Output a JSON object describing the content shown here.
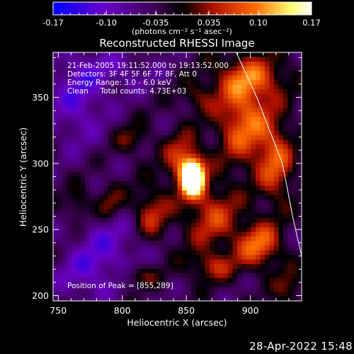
{
  "chart_data": {
    "type": "heatmap",
    "title": "Reconstructed RHESSI Image",
    "xlabel": "Heliocentric X (arcsec)",
    "ylabel": "Heliocentric Y (arcsec)",
    "xlim": [
      746,
      940
    ],
    "ylim": [
      196,
      384
    ],
    "x_ticks": [
      750,
      800,
      850,
      900
    ],
    "y_ticks": [
      200,
      250,
      300,
      350
    ],
    "colorbar": {
      "ticks": [
        "-0.17",
        "-0.10",
        "-0.035",
        "0.035",
        "0.10",
        "0.17"
      ],
      "range": [
        -0.17,
        0.17
      ],
      "unit_label": "(photons cm⁻² s⁻¹ asec⁻²)",
      "colors": [
        "#0000ff",
        "#6a00c8",
        "#3c0050",
        "#000000",
        "#b01000",
        "#ff6a00",
        "#ffff70",
        "#ffffff"
      ]
    },
    "info_lines": [
      "21-Feb-2005 19:11:52.000 to 19:13:52.000",
      "Detectors: 3F 4F 5F 6F 7F 8F, Att 0",
      "Energy Range: 3.0 - 6.0 keV",
      "Clean     Total counts: 4.73E+03"
    ],
    "peak_label": "Position of Peak = [855,289]",
    "peak": {
      "x": 855,
      "y": 289,
      "value": 0.17
    },
    "components": [
      {
        "x": 855,
        "y": 289,
        "sx": 6,
        "sy": 9,
        "amp": 0.3
      },
      {
        "x": 847,
        "y": 302,
        "sx": 10,
        "sy": 14,
        "amp": 0.1
      },
      {
        "x": 870,
        "y": 260,
        "sx": 16,
        "sy": 18,
        "amp": 0.09
      },
      {
        "x": 907,
        "y": 238,
        "sx": 12,
        "sy": 12,
        "amp": 0.12
      },
      {
        "x": 895,
        "y": 330,
        "sx": 15,
        "sy": 22,
        "amp": 0.12
      },
      {
        "x": 900,
        "y": 365,
        "sx": 20,
        "sy": 12,
        "amp": 0.1
      },
      {
        "x": 920,
        "y": 300,
        "sx": 10,
        "sy": 22,
        "amp": 0.1
      },
      {
        "x": 822,
        "y": 262,
        "sx": 10,
        "sy": 14,
        "amp": 0.09
      },
      {
        "x": 790,
        "y": 270,
        "sx": 8,
        "sy": 10,
        "amp": 0.07
      },
      {
        "x": 766,
        "y": 268,
        "sx": 7,
        "sy": 10,
        "amp": 0.06
      },
      {
        "x": 812,
        "y": 215,
        "sx": 12,
        "sy": 6,
        "amp": 0.06
      },
      {
        "x": 858,
        "y": 350,
        "sx": 10,
        "sy": 8,
        "amp": 0.05
      },
      {
        "x": 808,
        "y": 318,
        "sx": 10,
        "sy": 8,
        "amp": 0.05
      },
      {
        "x": 870,
        "y": 222,
        "sx": 14,
        "sy": 8,
        "amp": 0.07
      },
      {
        "x": 930,
        "y": 205,
        "sx": 8,
        "sy": 10,
        "amp": 0.06
      },
      {
        "x": 765,
        "y": 350,
        "sx": 16,
        "sy": 26,
        "amp": -0.07
      },
      {
        "x": 790,
        "y": 240,
        "sx": 20,
        "sy": 20,
        "amp": -0.06
      },
      {
        "x": 770,
        "y": 215,
        "sx": 18,
        "sy": 14,
        "amp": -0.05
      },
      {
        "x": 800,
        "y": 370,
        "sx": 22,
        "sy": 12,
        "amp": -0.04
      }
    ],
    "limb_arc": [
      [
        889,
        384
      ],
      [
        905,
        350
      ],
      [
        915,
        325
      ],
      [
        925,
        300
      ],
      [
        933,
        260
      ],
      [
        940,
        230
      ]
    ],
    "grid": false,
    "legend": "none"
  },
  "footer": {
    "timestamp": "28-Apr-2022 15:48"
  }
}
